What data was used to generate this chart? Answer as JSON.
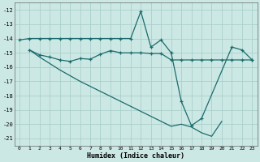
{
  "xlabel": "Humidex (Indice chaleur)",
  "xlim": [
    -0.5,
    23.5
  ],
  "ylim": [
    -21.5,
    -11.5
  ],
  "yticks": [
    -21,
    -20,
    -19,
    -18,
    -17,
    -16,
    -15,
    -14,
    -13,
    -12
  ],
  "xticks": [
    0,
    1,
    2,
    3,
    4,
    5,
    6,
    7,
    8,
    9,
    10,
    11,
    12,
    13,
    14,
    15,
    16,
    17,
    18,
    19,
    20,
    21,
    22,
    23
  ],
  "bg_color": "#cce8e4",
  "grid_color": "#aacfcc",
  "line_color": "#1a6b6b",
  "line1_x": [
    0,
    1,
    2,
    3,
    4,
    5,
    6,
    7,
    8,
    9,
    10,
    11,
    12,
    13,
    14,
    15,
    16,
    17,
    18,
    21,
    22,
    23
  ],
  "line1_y": [
    -14.1,
    -14.0,
    -14.0,
    -14.0,
    -14.0,
    -14.0,
    -14.0,
    -14.0,
    -14.0,
    -14.0,
    -14.0,
    -14.0,
    -12.1,
    -14.6,
    -14.1,
    -15.0,
    -18.4,
    -20.1,
    -19.6,
    -14.6,
    -14.8,
    -15.5
  ],
  "line2_x": [
    1,
    2,
    3,
    4,
    5,
    6,
    7,
    8,
    9,
    10,
    11,
    12,
    13,
    14,
    15,
    16,
    17,
    18,
    19,
    20,
    21,
    22,
    23
  ],
  "line2_y": [
    -14.8,
    -15.15,
    -15.3,
    -15.5,
    -15.6,
    -15.4,
    -15.45,
    -15.1,
    -14.85,
    -15.0,
    -15.0,
    -15.0,
    -15.05,
    -15.05,
    -15.5,
    -15.5,
    -15.5,
    -15.5,
    -15.5,
    -15.5,
    -15.5,
    -15.5,
    -15.5
  ],
  "line3_x": [
    1,
    2,
    3,
    4,
    5,
    6,
    7,
    8,
    9,
    10,
    11,
    12,
    13,
    14,
    15,
    16,
    17,
    18,
    19,
    20
  ],
  "line3_y": [
    -14.8,
    -15.3,
    -15.75,
    -16.2,
    -16.6,
    -17.0,
    -17.35,
    -17.7,
    -18.05,
    -18.4,
    -18.75,
    -19.1,
    -19.45,
    -19.8,
    -20.15,
    -20.0,
    -20.2,
    -20.6,
    -20.85,
    -19.8
  ]
}
